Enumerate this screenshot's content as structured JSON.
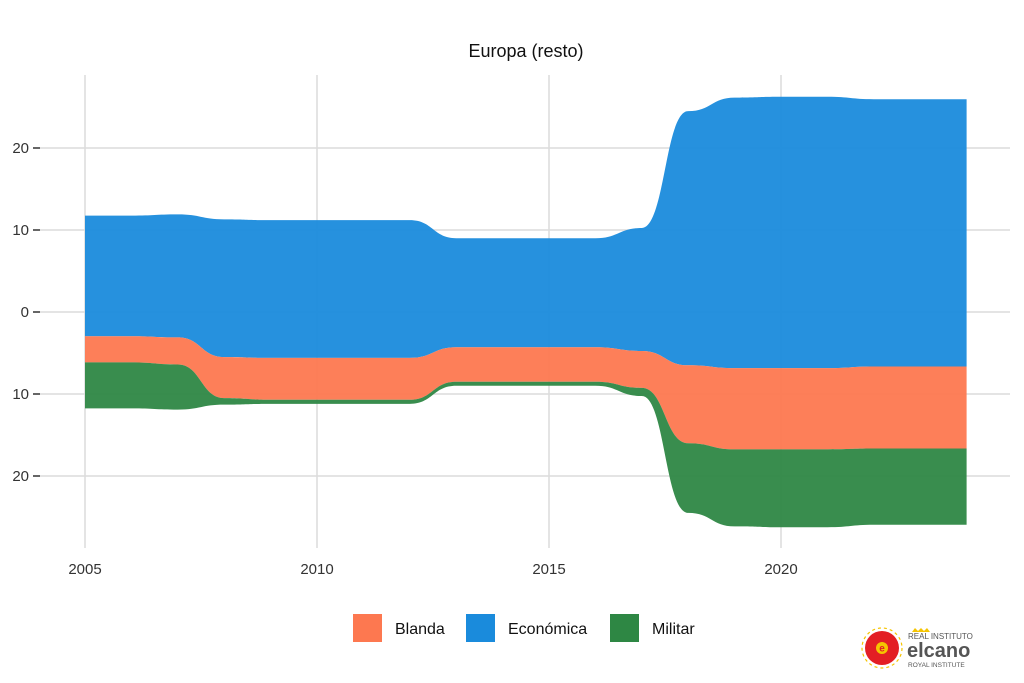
{
  "chart_data": {
    "type": "area",
    "subtype": "streamgraph",
    "title": "Europa (resto)",
    "x": [
      2005,
      2006,
      2007,
      2008,
      2009,
      2010,
      2011,
      2012,
      2013,
      2014,
      2015,
      2016,
      2017,
      2018,
      2019,
      2020,
      2021,
      2022,
      2023,
      2024
    ],
    "xticks": [
      "2005",
      "2010",
      "2015",
      "2020"
    ],
    "yticks": [
      {
        "value": 20,
        "label": "20"
      },
      {
        "value": 10,
        "label": "10"
      },
      {
        "value": 0,
        "label": "0"
      },
      {
        "value": -10,
        "label": "10"
      },
      {
        "value": -20,
        "label": "20"
      }
    ],
    "ylim": [
      -29,
      29
    ],
    "xlim": [
      2004.5,
      2024.9
    ],
    "grid": true,
    "legend_position": "bottom",
    "series": [
      {
        "name": "Económica",
        "color": "#1a8bdc",
        "values": [
          14.7,
          14.7,
          15.0,
          16.8,
          16.8,
          16.8,
          16.8,
          16.8,
          13.3,
          13.3,
          13.3,
          13.3,
          15.0,
          31.0,
          33.0,
          33.1,
          33.1,
          32.6,
          32.6,
          32.6
        ]
      },
      {
        "name": "Blanda",
        "color": "#fd7850",
        "values": [
          3.2,
          3.2,
          3.3,
          5.0,
          5.1,
          5.1,
          5.1,
          5.1,
          4.2,
          4.2,
          4.2,
          4.2,
          4.5,
          9.5,
          9.9,
          9.9,
          9.9,
          10.0,
          10.0,
          10.0
        ]
      },
      {
        "name": "Militar",
        "color": "#2e8744",
        "values": [
          5.6,
          5.6,
          5.5,
          0.8,
          0.5,
          0.5,
          0.5,
          0.5,
          0.5,
          0.5,
          0.5,
          0.5,
          1.0,
          8.5,
          9.4,
          9.5,
          9.5,
          9.3,
          9.3,
          9.3
        ]
      }
    ]
  },
  "logo": {
    "line1": "REAL INSTITUTO",
    "line2": "elcano",
    "line3": "ROYAL INSTITUTE"
  }
}
